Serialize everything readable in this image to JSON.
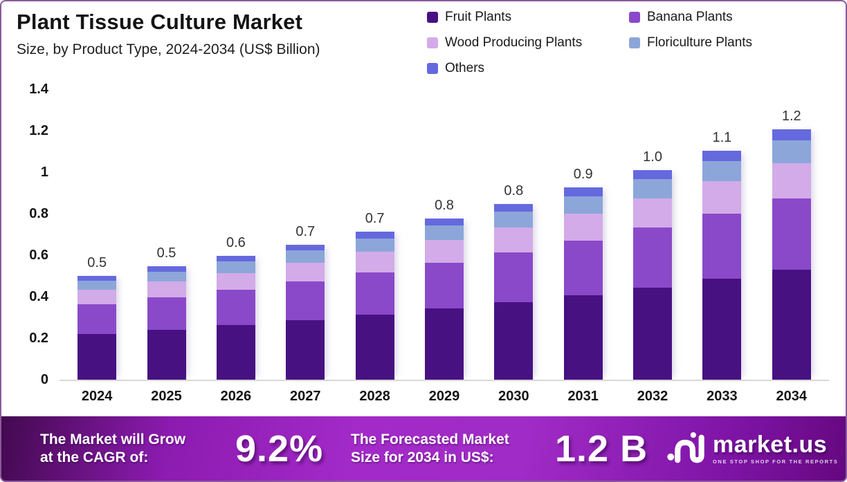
{
  "header": {
    "title": "Plant Tissue Culture Market",
    "subtitle": "Size, by Product Type, 2024-2034 (US$ Billion)"
  },
  "colors": {
    "fruit_plants": "#471182",
    "banana_plants": "#8a49c9",
    "wood_producing_plants": "#d2abe8",
    "floriculture_plants": "#8ca6d9",
    "others": "#6569de",
    "banner_gradient_start": "#43094f",
    "banner_gradient_mid": "#a32ac8",
    "banner_gradient_end": "#65087f",
    "axis_line": "#d9d9d9"
  },
  "chart_data": {
    "type": "bar",
    "stacked": true,
    "title": "Plant Tissue Culture Market Size, by Product Type, 2024-2034 (US$ Billion)",
    "xlabel": "",
    "ylabel": "",
    "ylim": [
      0,
      1.4
    ],
    "grid": false,
    "legend_position": "top-right",
    "y_ticks": [
      "1.4",
      "1.2",
      "1",
      "0.8",
      "0.6",
      "0.4",
      "0.2",
      "0"
    ],
    "y_tick_values": [
      1.4,
      1.2,
      1,
      0.8,
      0.6,
      0.4,
      0.2,
      0
    ],
    "categories": [
      "2024",
      "2025",
      "2026",
      "2027",
      "2028",
      "2029",
      "2030",
      "2031",
      "2032",
      "2033",
      "2034"
    ],
    "total_labels": [
      "0.5",
      "0.5",
      "0.6",
      "0.7",
      "0.7",
      "0.8",
      "0.8",
      "0.9",
      "1.0",
      "1.1",
      "1.2"
    ],
    "series": [
      {
        "name": "Fruit Plants",
        "color": "#471182",
        "values": [
          0.22,
          0.24,
          0.262,
          0.286,
          0.313,
          0.342,
          0.373,
          0.407,
          0.445,
          0.486,
          0.531
        ]
      },
      {
        "name": "Banana Plants",
        "color": "#8a49c9",
        "values": [
          0.143,
          0.156,
          0.17,
          0.186,
          0.203,
          0.221,
          0.242,
          0.264,
          0.288,
          0.315,
          0.344
        ]
      },
      {
        "name": "Wood Producing Plants",
        "color": "#d2abe8",
        "values": [
          0.07,
          0.076,
          0.083,
          0.091,
          0.1,
          0.109,
          0.119,
          0.13,
          0.142,
          0.155,
          0.169
        ]
      },
      {
        "name": "Floriculture Plants",
        "color": "#8ca6d9",
        "values": [
          0.045,
          0.049,
          0.054,
          0.059,
          0.064,
          0.07,
          0.076,
          0.083,
          0.091,
          0.099,
          0.109
        ]
      },
      {
        "name": "Others",
        "color": "#6569de",
        "values": [
          0.023,
          0.025,
          0.027,
          0.029,
          0.032,
          0.035,
          0.038,
          0.042,
          0.045,
          0.05,
          0.054
        ]
      }
    ]
  },
  "banner": {
    "cagr_label_line1": "The Market will Grow",
    "cagr_label_line2": "at the CAGR of:",
    "cagr_value": "9.2%",
    "forecast_label_line1": "The Forecasted Market",
    "forecast_label_line2": "Size for 2034 in US$:",
    "forecast_value": "1.2 B",
    "brand_name": "market.us",
    "brand_tagline": "ONE STOP SHOP FOR THE REPORTS"
  }
}
